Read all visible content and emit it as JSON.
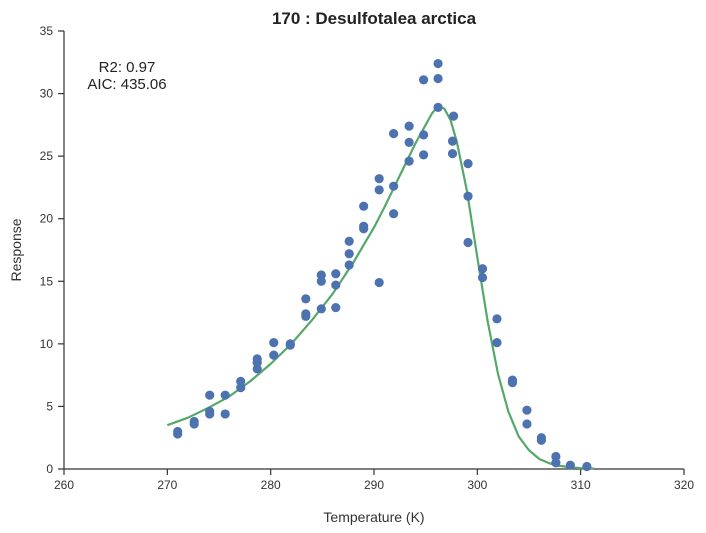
{
  "chart_data": {
    "type": "scatter",
    "title": "170 : Desulfotalea arctica",
    "xlabel": "Temperature (K)",
    "ylabel": "Response",
    "xlim": [
      260,
      320
    ],
    "ylim": [
      0,
      35
    ],
    "xticks": [
      260,
      270,
      280,
      290,
      300,
      310,
      320
    ],
    "yticks": [
      0,
      5,
      10,
      15,
      20,
      25,
      30,
      35
    ],
    "annotations": [
      "R2: 0.97",
      "AIC: 435.06"
    ],
    "grid": false,
    "colors": {
      "points": "#4c72b0",
      "fit": "#55a868"
    },
    "series": [
      {
        "kind": "scatter",
        "points": [
          [
            271,
            3.0
          ],
          [
            271,
            2.8
          ],
          [
            272.6,
            3.8
          ],
          [
            272.6,
            3.6
          ],
          [
            274.1,
            5.9
          ],
          [
            274.1,
            4.6
          ],
          [
            274.1,
            4.4
          ],
          [
            275.6,
            5.9
          ],
          [
            275.6,
            4.4
          ],
          [
            277.1,
            7.0
          ],
          [
            277.1,
            6.5
          ],
          [
            278.7,
            8.8
          ],
          [
            278.7,
            8.5
          ],
          [
            278.7,
            8.0
          ],
          [
            280.3,
            10.1
          ],
          [
            280.3,
            9.1
          ],
          [
            281.9,
            10.0
          ],
          [
            281.9,
            9.9
          ],
          [
            283.4,
            13.6
          ],
          [
            283.4,
            12.4
          ],
          [
            283.4,
            12.2
          ],
          [
            284.9,
            15.5
          ],
          [
            284.9,
            15.0
          ],
          [
            284.9,
            12.8
          ],
          [
            286.3,
            15.6
          ],
          [
            286.3,
            14.7
          ],
          [
            286.3,
            12.9
          ],
          [
            287.6,
            18.2
          ],
          [
            287.6,
            17.2
          ],
          [
            287.6,
            16.3
          ],
          [
            289,
            21.0
          ],
          [
            289,
            19.4
          ],
          [
            289,
            19.2
          ],
          [
            290.5,
            23.2
          ],
          [
            290.5,
            22.3
          ],
          [
            290.5,
            14.9
          ],
          [
            291.9,
            26.8
          ],
          [
            291.9,
            22.6
          ],
          [
            291.9,
            20.4
          ],
          [
            293.4,
            27.4
          ],
          [
            293.4,
            26.1
          ],
          [
            293.4,
            24.6
          ],
          [
            294.8,
            31.1
          ],
          [
            294.8,
            26.7
          ],
          [
            294.8,
            25.1
          ],
          [
            296.2,
            32.4
          ],
          [
            296.2,
            31.2
          ],
          [
            296.2,
            28.9
          ],
          [
            297.7,
            28.2
          ],
          [
            297.6,
            26.2
          ],
          [
            297.6,
            25.2
          ],
          [
            299.1,
            24.4
          ],
          [
            299.1,
            21.8
          ],
          [
            299.1,
            18.1
          ],
          [
            300.5,
            16.0
          ],
          [
            300.5,
            15.3
          ],
          [
            301.9,
            12.0
          ],
          [
            301.9,
            10.1
          ],
          [
            303.4,
            7.1
          ],
          [
            303.4,
            6.9
          ],
          [
            304.8,
            4.7
          ],
          [
            304.8,
            3.6
          ],
          [
            306.2,
            2.5
          ],
          [
            306.2,
            2.3
          ],
          [
            307.6,
            1.0
          ],
          [
            307.6,
            0.5
          ],
          [
            309,
            0.3
          ],
          [
            310.6,
            0.2
          ]
        ]
      },
      {
        "kind": "line",
        "points": [
          [
            270,
            3.5
          ],
          [
            272,
            4.1
          ],
          [
            274,
            4.9
          ],
          [
            276,
            5.8
          ],
          [
            278,
            7.0
          ],
          [
            280,
            8.4
          ],
          [
            282,
            10.0
          ],
          [
            284,
            11.9
          ],
          [
            286,
            14.0
          ],
          [
            288,
            16.5
          ],
          [
            290,
            19.3
          ],
          [
            291,
            20.9
          ],
          [
            292,
            22.6
          ],
          [
            293,
            24.3
          ],
          [
            294,
            26.0
          ],
          [
            295,
            27.5
          ],
          [
            295.6,
            28.4
          ],
          [
            296.2,
            29.0
          ],
          [
            296.8,
            28.8
          ],
          [
            297.4,
            27.9
          ],
          [
            298,
            26.2
          ],
          [
            299,
            22.2
          ],
          [
            300,
            16.9
          ],
          [
            301,
            11.8
          ],
          [
            302,
            7.6
          ],
          [
            303,
            4.6
          ],
          [
            304,
            2.6
          ],
          [
            305,
            1.5
          ],
          [
            306,
            0.8
          ],
          [
            307,
            0.45
          ],
          [
            308,
            0.25
          ],
          [
            309,
            0.13
          ],
          [
            310,
            0.07
          ],
          [
            311.3,
            0.03
          ]
        ]
      }
    ]
  }
}
